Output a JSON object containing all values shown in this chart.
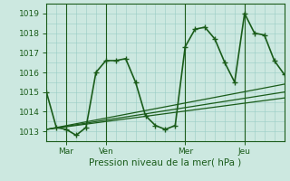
{
  "title": "",
  "xlabel": "Pression niveau de la mer( hPa )",
  "background_color": "#cce8e0",
  "grid_color": "#99ccc4",
  "line_color": "#1a5c1a",
  "ylim": [
    1012.5,
    1019.5
  ],
  "xlim": [
    0,
    48
  ],
  "xticks": [
    4,
    12,
    28,
    40
  ],
  "xtick_labels": [
    "Mar",
    "Ven",
    "Mer",
    "Jeu"
  ],
  "yticks": [
    1013,
    1014,
    1015,
    1016,
    1017,
    1018,
    1019
  ],
  "minor_xticks_step": 2,
  "vlines": [
    4,
    12,
    28,
    40
  ],
  "series": [
    {
      "x": [
        0,
        2,
        4,
        6,
        8,
        10,
        12,
        14,
        16,
        18,
        20,
        22,
        24,
        26,
        28,
        30,
        32,
        34,
        36,
        38,
        40,
        42,
        44,
        46,
        48
      ],
      "y": [
        1015.0,
        1013.2,
        1013.1,
        1012.8,
        1013.2,
        1016.0,
        1016.6,
        1016.6,
        1016.7,
        1015.5,
        1013.8,
        1013.3,
        1013.1,
        1013.3,
        1017.3,
        1018.2,
        1018.3,
        1017.7,
        1016.5,
        1015.5,
        1019.0,
        1018.0,
        1017.9,
        1016.6,
        1015.9
      ],
      "marker": "+",
      "linewidth": 1.2
    },
    {
      "x": [
        0,
        48
      ],
      "y": [
        1013.1,
        1015.0
      ],
      "marker": null,
      "linewidth": 0.9
    },
    {
      "x": [
        0,
        48
      ],
      "y": [
        1013.1,
        1014.7
      ],
      "marker": null,
      "linewidth": 0.9
    },
    {
      "x": [
        0,
        48
      ],
      "y": [
        1013.1,
        1015.4
      ],
      "marker": null,
      "linewidth": 0.9
    }
  ]
}
